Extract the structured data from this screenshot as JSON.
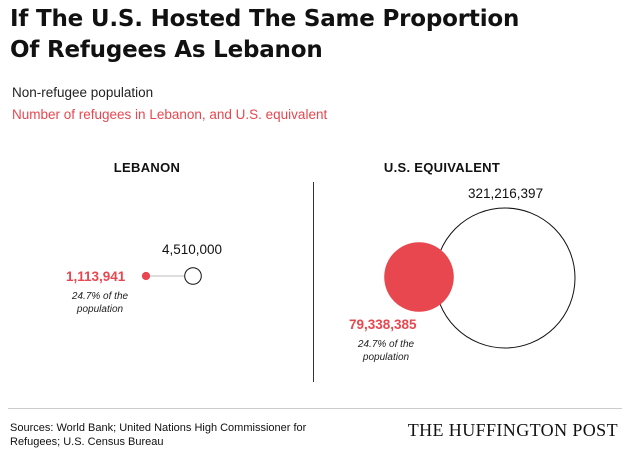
{
  "title_lines": [
    "If The U.S. Hosted The Same Proportion",
    "Of Refugees As Lebanon"
  ],
  "legend": {
    "non_refugee": "Non-refugee population",
    "refugee": "Number of refugees in Lebanon, and U.S. equivalent"
  },
  "colors": {
    "refugee": "#e8474f",
    "non_refugee_stroke": "#111111"
  },
  "chart_data": {
    "type": "bubble",
    "panels": [
      {
        "label": "LEBANON",
        "total_population": 4510000,
        "total_label": "4,510,000",
        "refugees": 1113941,
        "refugees_label": "1,113,941",
        "note": "24.7% of the population"
      },
      {
        "label": "U.S. EQUIVALENT",
        "total_population": 321216397,
        "total_label": "321,216,397",
        "refugees": 79338385,
        "refugees_label": "79,338,385",
        "note": "24.7% of the population"
      }
    ]
  },
  "sources": "Sources: World Bank; United Nations High Commissioner for Refugees; U.S. Census Bureau",
  "brand": "THE HUFFINGTON POST"
}
